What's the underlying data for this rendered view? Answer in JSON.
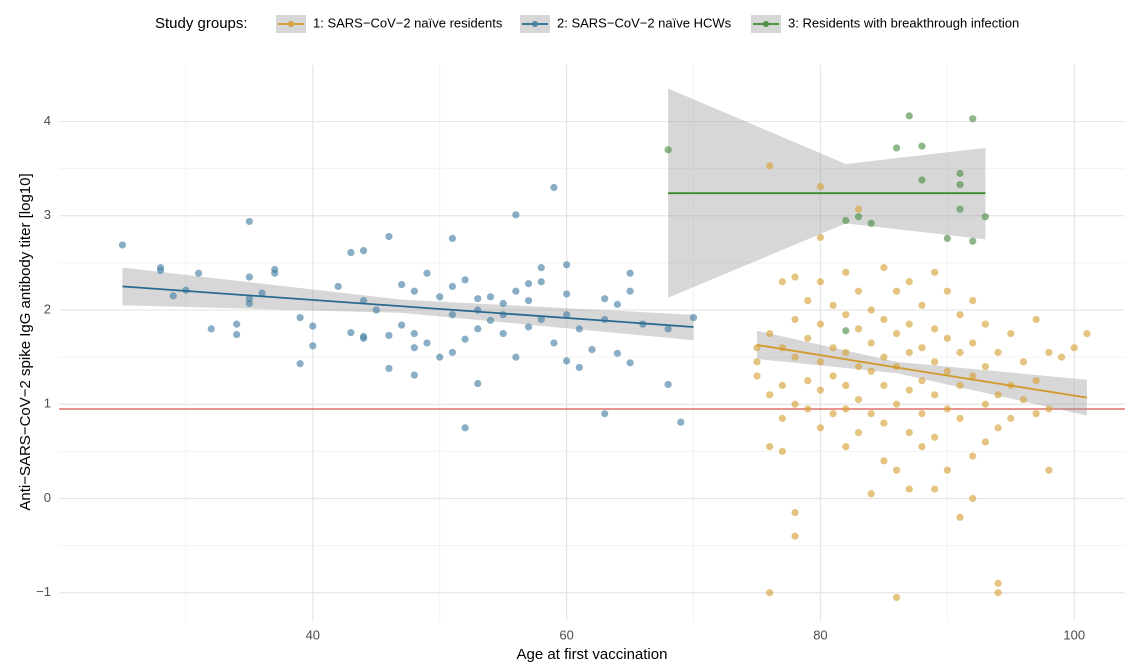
{
  "chart_data": {
    "type": "scatter",
    "legend_title": "Study groups:",
    "xlabel": "Age at first vaccination",
    "ylabel": "Anti−SARS−CoV−2 spike IgG antibody titer [log10]",
    "xlim": [
      20,
      104
    ],
    "ylim": [
      -1.3,
      4.6
    ],
    "xticks": [
      40,
      60,
      80,
      100
    ],
    "yticks": [
      {
        "value": -1,
        "label": "−1"
      },
      0,
      1,
      2,
      3,
      4
    ],
    "xminor": [
      30,
      50,
      70,
      90
    ],
    "yminor": [
      -0.5,
      0.5,
      1.5,
      2.5,
      3.5
    ],
    "grid": true,
    "legend": "top",
    "threshold": 0.95,
    "threshold_color": "#d9534f",
    "band_color": "#9a9a9a",
    "series": [
      {
        "name": "1: SARS−CoV−2 naïve residents",
        "color": "#d6a53c",
        "line_color": "#d19a2a",
        "x": [
          75,
          75,
          75,
          76,
          76,
          76,
          76,
          77,
          77,
          77,
          77,
          77,
          78,
          78,
          78,
          78,
          78,
          78,
          79,
          79,
          79,
          79,
          80,
          80,
          80,
          80,
          80,
          81,
          81,
          81,
          81,
          82,
          82,
          82,
          82,
          82,
          82,
          83,
          83,
          83,
          83,
          83,
          84,
          84,
          84,
          84,
          84,
          85,
          85,
          85,
          85,
          85,
          85,
          86,
          86,
          86,
          86,
          86,
          86,
          87,
          87,
          87,
          87,
          87,
          88,
          88,
          88,
          88,
          88,
          89,
          89,
          89,
          89,
          89,
          89,
          90,
          90,
          90,
          90,
          90,
          91,
          91,
          91,
          91,
          91,
          92,
          92,
          92,
          92,
          92,
          93,
          93,
          93,
          93,
          94,
          94,
          94,
          94,
          94,
          95,
          95,
          95,
          96,
          96,
          97,
          97,
          98,
          98,
          98,
          99,
          100,
          101,
          97,
          87,
          76,
          80,
          83,
          80
        ],
        "values": [
          1.6,
          1.45,
          1.3,
          1.75,
          1.1,
          0.55,
          -1.0,
          2.3,
          1.6,
          1.2,
          0.85,
          0.5,
          2.35,
          1.9,
          1.5,
          1.0,
          -0.15,
          -0.4,
          2.1,
          1.7,
          1.25,
          0.95,
          2.3,
          1.85,
          1.45,
          1.15,
          0.75,
          2.05,
          1.6,
          1.3,
          0.9,
          2.4,
          1.95,
          1.55,
          1.2,
          0.95,
          0.55,
          2.2,
          1.8,
          1.4,
          1.05,
          0.7,
          2.0,
          1.65,
          1.35,
          0.9,
          0.05,
          2.45,
          1.9,
          1.5,
          1.2,
          0.8,
          0.4,
          2.2,
          1.75,
          1.4,
          1.0,
          0.3,
          -1.05,
          2.3,
          1.85,
          1.55,
          1.15,
          0.7,
          2.05,
          1.6,
          1.25,
          0.9,
          0.55,
          2.4,
          1.8,
          1.45,
          1.1,
          0.65,
          0.1,
          2.2,
          1.7,
          1.35,
          0.95,
          0.3,
          1.95,
          1.55,
          1.2,
          0.85,
          -0.2,
          2.1,
          1.65,
          1.3,
          0.45,
          0.0,
          1.85,
          1.4,
          1.0,
          0.6,
          1.55,
          1.1,
          0.75,
          -0.9,
          -1.0,
          1.75,
          1.2,
          0.85,
          1.45,
          1.05,
          1.9,
          1.25,
          1.55,
          0.3,
          0.95,
          1.5,
          1.6,
          1.75,
          0.9,
          0.1,
          3.53,
          3.31,
          3.07,
          2.77
        ],
        "fit": {
          "x": [
            75,
            86,
            101
          ],
          "values": [
            1.63,
            1.39,
            1.07
          ],
          "lower": [
            1.48,
            1.33,
            0.88
          ],
          "upper": [
            1.78,
            1.45,
            1.26
          ]
        }
      },
      {
        "name": "2: SARS−CoV−2 naïve HCWs",
        "color": "#4a82a6",
        "line_color": "#2a6a90",
        "x": [
          25,
          28,
          28,
          29,
          30,
          31,
          32,
          34,
          34,
          35,
          35,
          35,
          35,
          36,
          37,
          37,
          39,
          39,
          40,
          40,
          42,
          43,
          43,
          44,
          44,
          44,
          44,
          45,
          46,
          46,
          46,
          47,
          47,
          48,
          48,
          48,
          49,
          49,
          50,
          50,
          51,
          51,
          51,
          51,
          52,
          52,
          53,
          53,
          53,
          53,
          54,
          54,
          55,
          55,
          56,
          56,
          56,
          57,
          57,
          57,
          58,
          58,
          58,
          59,
          59,
          60,
          60,
          60,
          60,
          61,
          61,
          62,
          63,
          63,
          63,
          64,
          64,
          65,
          65,
          65,
          66,
          68,
          68,
          69,
          70,
          52,
          48,
          55
        ],
        "values": [
          2.69,
          2.45,
          2.42,
          2.15,
          2.21,
          2.39,
          1.8,
          1.85,
          1.74,
          2.35,
          2.07,
          2.12,
          2.94,
          2.18,
          2.43,
          2.39,
          1.92,
          1.43,
          1.83,
          1.62,
          2.25,
          1.76,
          2.61,
          2.63,
          1.7,
          1.72,
          2.1,
          2.0,
          1.73,
          2.78,
          1.38,
          2.27,
          1.84,
          2.2,
          1.31,
          1.75,
          2.39,
          1.65,
          2.14,
          1.5,
          2.76,
          2.25,
          1.95,
          1.55,
          2.32,
          1.69,
          2.0,
          1.8,
          1.22,
          2.12,
          1.89,
          2.14,
          1.95,
          1.75,
          3.01,
          2.2,
          1.5,
          2.28,
          2.1,
          1.82,
          2.45,
          2.3,
          1.9,
          3.3,
          1.65,
          2.48,
          2.17,
          1.46,
          1.95,
          1.8,
          1.39,
          1.58,
          2.12,
          1.9,
          0.9,
          2.06,
          1.54,
          2.39,
          2.2,
          1.44,
          1.85,
          1.21,
          1.8,
          0.81,
          1.92,
          0.75,
          1.6,
          2.07
        ],
        "fit": {
          "x": [
            25,
            47,
            70
          ],
          "values": [
            2.25,
            2.04,
            1.82
          ],
          "lower": [
            2.05,
            1.97,
            1.68
          ],
          "upper": [
            2.45,
            2.11,
            1.95
          ]
        }
      },
      {
        "name": "3: Residents with breakthrough infection",
        "color": "#52904a",
        "line_color": "#3d8a2f",
        "x": [
          68,
          87,
          92,
          86,
          88,
          91,
          88,
          91,
          82,
          83,
          84,
          91,
          93,
          90,
          92,
          82
        ],
        "values": [
          3.7,
          4.06,
          4.03,
          3.72,
          3.74,
          3.45,
          3.38,
          3.33,
          2.95,
          2.99,
          2.92,
          3.07,
          2.99,
          2.76,
          2.73,
          1.78
        ],
        "fit": {
          "x": [
            68,
            82,
            93
          ],
          "values": [
            3.24,
            3.24,
            3.24
          ],
          "lower": [
            2.13,
            2.92,
            2.75
          ],
          "upper": [
            4.35,
            3.55,
            3.72
          ]
        }
      }
    ]
  }
}
